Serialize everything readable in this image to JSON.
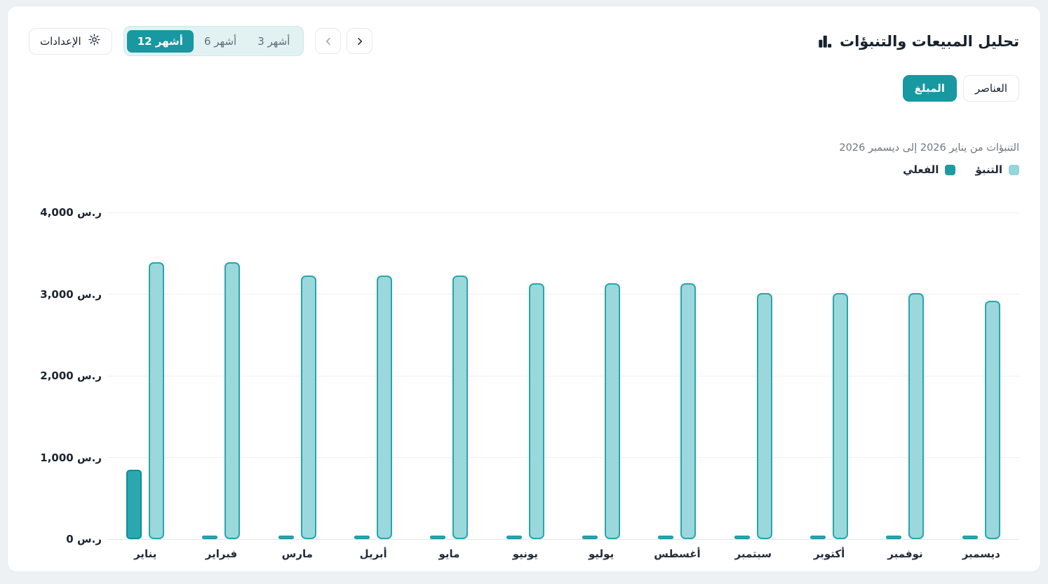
{
  "header": {
    "title": "تحليل المبيعات والتنبؤات",
    "title_icon": "bar-chart-icon",
    "settings_label": "الإعدادات",
    "settings_icon": "gear-icon",
    "range_tabs": [
      {
        "label": "3 أشهر",
        "selected": false
      },
      {
        "label": "6 أشهر",
        "selected": false
      },
      {
        "label": "12 أشهر",
        "selected": true
      }
    ],
    "nav": {
      "next_icon": "chevron-right-icon",
      "prev_icon": "chevron-left-icon"
    }
  },
  "toggles": [
    {
      "label": "العناصر",
      "selected": false
    },
    {
      "label": "المبلغ",
      "selected": true
    }
  ],
  "subtitle": {
    "text": "التنبؤات من يناير 2026 إلى ديسمبر 2026"
  },
  "legend": [
    {
      "label": "التنبؤ",
      "color": "#96d6da"
    },
    {
      "label": "الفعلي",
      "color": "#1d9aa2"
    }
  ],
  "colors": {
    "accent_teal": "#1898a1",
    "forecast_fill": "#9ad8dc",
    "forecast_stroke": "#2aa5ad",
    "actual_fill": "#2aa8af",
    "actual_stroke": "#0f8d96",
    "gridline": "#edeff2"
  },
  "chart_data": {
    "type": "bar",
    "title": "تحليل المبيعات والتنبؤات",
    "subtitle": "التنبؤات من يناير 2026 إلى ديسمبر 2026",
    "currency": "ر.س",
    "categories": [
      "يناير",
      "فبراير",
      "مارس",
      "أبريل",
      "مايو",
      "يونيو",
      "يوليو",
      "أغسطس",
      "سبتمبر",
      "أكتوبر",
      "نوفمبر",
      "ديسمبر"
    ],
    "series": [
      {
        "name": "التنبؤ",
        "values": [
          3390,
          3390,
          3230,
          3230,
          3230,
          3130,
          3130,
          3130,
          3010,
          3010,
          3010,
          2920
        ]
      },
      {
        "name": "الفعلي",
        "values": [
          850,
          20,
          20,
          20,
          20,
          20,
          20,
          20,
          20,
          20,
          20,
          20
        ]
      }
    ],
    "ylim": [
      0,
      4000
    ],
    "y_ticks": [
      {
        "value": 4000,
        "label": "4,000 ر.س"
      },
      {
        "value": 3000,
        "label": "3,000 ر.س"
      },
      {
        "value": 2000,
        "label": "2,000 ر.س"
      },
      {
        "value": 1000,
        "label": "1,000 ر.س"
      },
      {
        "value": 0,
        "label": "ر.س 0"
      }
    ],
    "grid": true,
    "legend_position": "top-right"
  }
}
